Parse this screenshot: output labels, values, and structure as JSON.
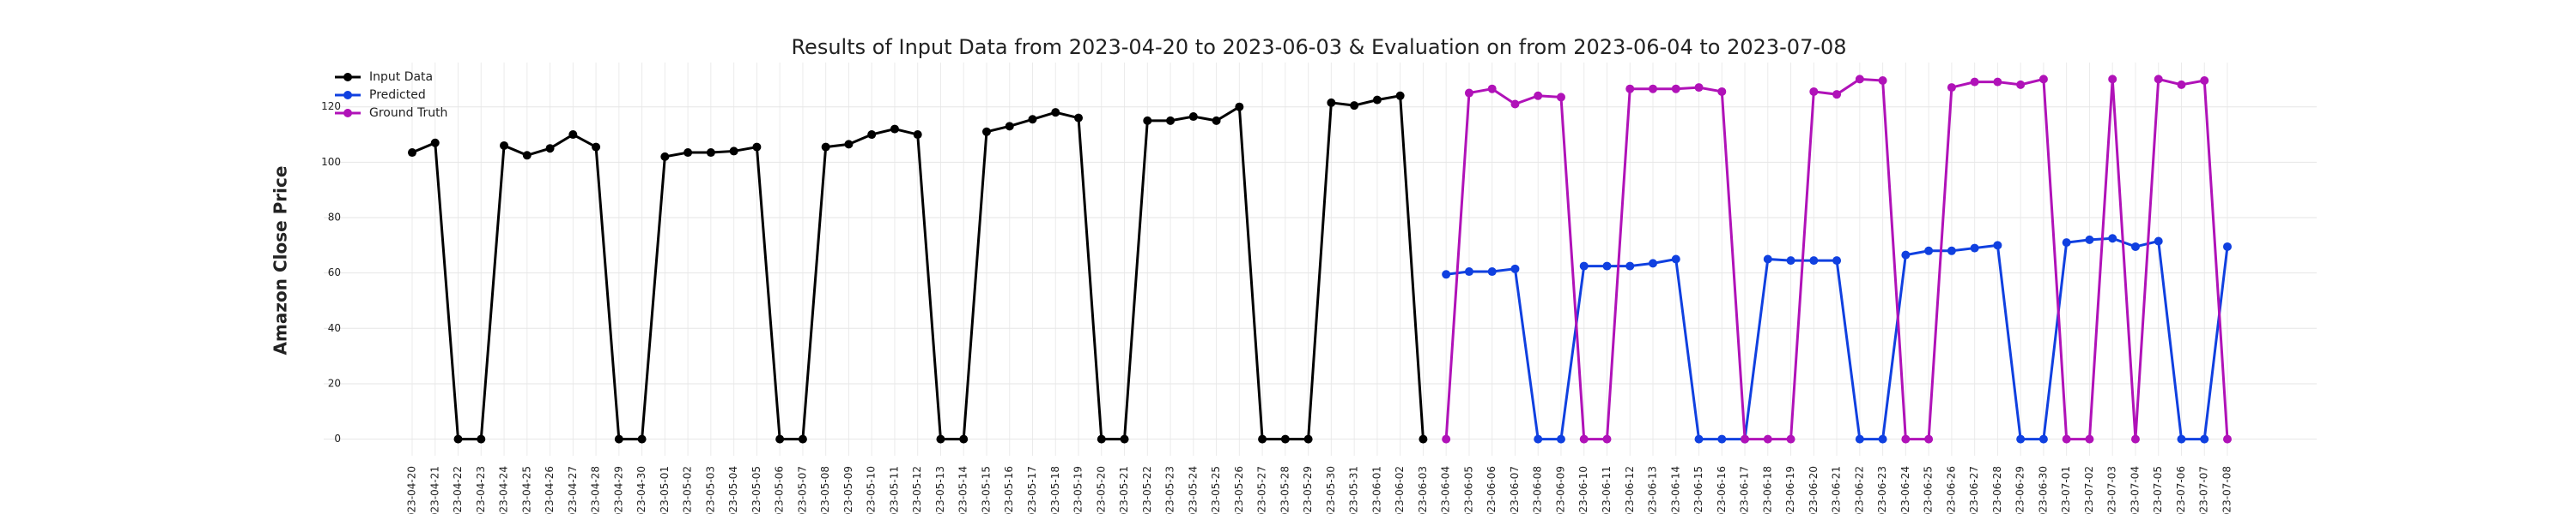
{
  "chart_data": {
    "type": "line",
    "title": "Results of Input Data from 2023-04-20 to 2023-06-03 & Evaluation on from 2023-06-04 to 2023-07-08",
    "y_label": "Amazon Close Price",
    "categories": [
      "2023-04-20",
      "2023-04-21",
      "2023-04-22",
      "2023-04-23",
      "2023-04-24",
      "2023-04-25",
      "2023-04-26",
      "2023-04-27",
      "2023-04-28",
      "2023-04-29",
      "2023-04-30",
      "2023-05-01",
      "2023-05-02",
      "2023-05-03",
      "2023-05-04",
      "2023-05-05",
      "2023-05-06",
      "2023-05-07",
      "2023-05-08",
      "2023-05-09",
      "2023-05-10",
      "2023-05-11",
      "2023-05-12",
      "2023-05-13",
      "2023-05-14",
      "2023-05-15",
      "2023-05-16",
      "2023-05-17",
      "2023-05-18",
      "2023-05-19",
      "2023-05-20",
      "2023-05-21",
      "2023-05-22",
      "2023-05-23",
      "2023-05-24",
      "2023-05-25",
      "2023-05-26",
      "2023-05-27",
      "2023-05-28",
      "2023-05-29",
      "2023-05-30",
      "2023-05-31",
      "2023-06-01",
      "2023-06-02",
      "2023-06-03",
      "2023-06-04",
      "2023-06-05",
      "2023-06-06",
      "2023-06-07",
      "2023-06-08",
      "2023-06-09",
      "2023-06-10",
      "2023-06-11",
      "2023-06-12",
      "2023-06-13",
      "2023-06-14",
      "2023-06-15",
      "2023-06-16",
      "2023-06-17",
      "2023-06-18",
      "2023-06-19",
      "2023-06-20",
      "2023-06-21",
      "2023-06-22",
      "2023-06-23",
      "2023-06-24",
      "2023-06-25",
      "2023-06-26",
      "2023-06-27",
      "2023-06-28",
      "2023-06-29",
      "2023-06-30",
      "2023-07-01",
      "2023-07-02",
      "2023-07-03",
      "2023-07-04",
      "2023-07-05",
      "2023-07-06",
      "2023-07-07",
      "2023-07-08"
    ],
    "series": [
      {
        "name": "Input Data",
        "color": "#000000",
        "values": [
          103.5,
          107,
          0,
          0,
          106,
          102.5,
          105,
          110,
          105.5,
          0,
          0,
          102,
          103.5,
          103.5,
          104,
          105.5,
          0,
          0,
          105.5,
          106.5,
          110,
          112,
          110,
          0,
          0,
          111,
          113,
          115.5,
          118,
          116,
          0,
          0,
          115,
          115,
          116.5,
          115,
          120,
          0,
          0,
          0,
          121.5,
          120.5,
          122.5,
          124,
          0,
          null,
          null,
          null,
          null,
          null,
          null,
          null,
          null,
          null,
          null,
          null,
          null,
          null,
          null,
          null,
          null,
          null,
          null,
          null,
          null,
          null,
          null,
          null,
          null,
          null,
          null,
          null,
          null,
          null,
          null,
          null,
          null,
          null,
          null,
          null
        ]
      },
      {
        "name": "Predicted",
        "color": "#1040e0",
        "values": [
          null,
          null,
          null,
          null,
          null,
          null,
          null,
          null,
          null,
          null,
          null,
          null,
          null,
          null,
          null,
          null,
          null,
          null,
          null,
          null,
          null,
          null,
          null,
          null,
          null,
          null,
          null,
          null,
          null,
          null,
          null,
          null,
          null,
          null,
          null,
          null,
          null,
          null,
          null,
          null,
          null,
          null,
          null,
          null,
          null,
          59.5,
          60.5,
          60.5,
          61.5,
          0,
          0,
          62.5,
          62.5,
          62.5,
          63.5,
          65,
          0,
          0,
          0,
          65,
          64.5,
          64.5,
          64.5,
          0,
          0,
          66.5,
          68,
          68,
          69,
          70,
          0,
          0,
          71,
          72,
          72.5,
          69.5,
          71.5,
          0,
          0,
          69.5
        ]
      },
      {
        "name": "Ground Truth",
        "color": "#b012b8",
        "values": [
          null,
          null,
          null,
          null,
          null,
          null,
          null,
          null,
          null,
          null,
          null,
          null,
          null,
          null,
          null,
          null,
          null,
          null,
          null,
          null,
          null,
          null,
          null,
          null,
          null,
          null,
          null,
          null,
          null,
          null,
          null,
          null,
          null,
          null,
          null,
          null,
          null,
          null,
          null,
          null,
          null,
          null,
          null,
          null,
          null,
          0,
          125,
          126.5,
          121,
          124,
          123.5,
          0,
          0,
          126.5,
          126.5,
          126.5,
          127,
          125.5,
          0,
          0,
          0,
          125.5,
          124.5,
          130,
          129.5,
          0,
          0,
          127,
          129,
          129,
          128,
          130,
          0,
          0,
          130,
          0,
          130,
          128,
          129.5,
          0
        ]
      }
    ],
    "ylim": [
      -6,
      136
    ],
    "yticks": [
      0,
      20,
      40,
      60,
      80,
      100,
      120
    ],
    "grid": true,
    "legend": "upper left"
  }
}
